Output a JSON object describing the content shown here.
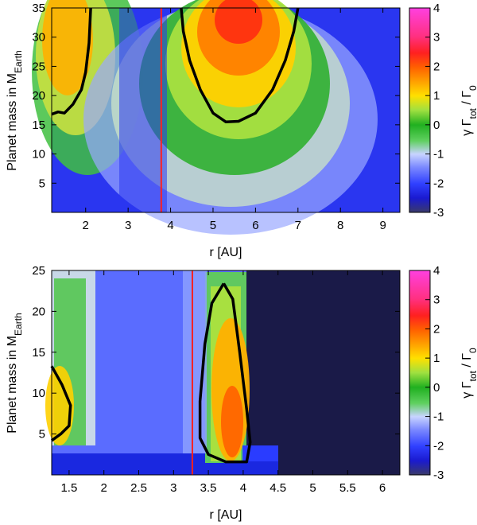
{
  "chart_data": [
    {
      "type": "heatmap",
      "title": "",
      "xlabel": "r [AU]",
      "ylabel_main": "Planet mass in M",
      "ylabel_sub": "Earth",
      "colorbar_label_main": "γ Γ",
      "colorbar_label_sub": "tot",
      "colorbar_label_tail": " / Γ",
      "colorbar_label_sub2": "0",
      "xlim": [
        1.2,
        9.4
      ],
      "ylim": [
        0,
        35
      ],
      "zlim": [
        -3,
        4
      ],
      "x_ticks": [
        "2",
        "3",
        "4",
        "5",
        "6",
        "7",
        "8",
        "9"
      ],
      "x_tick_values": [
        2,
        3,
        4,
        5,
        6,
        7,
        8,
        9
      ],
      "y_ticks": [
        "5",
        "10",
        "15",
        "20",
        "25",
        "30",
        "35"
      ],
      "y_tick_values": [
        5,
        10,
        15,
        20,
        25,
        30,
        35
      ],
      "colorbar_ticks": [
        "-3",
        "-2",
        "-1",
        "0",
        "1",
        "2",
        "3",
        "4"
      ],
      "colorbar_tick_values": [
        -3,
        -2,
        -1,
        0,
        1,
        2,
        3,
        4
      ],
      "vline_x": 3.78,
      "vline_color": "#ff2020",
      "zero_contours": [
        [
          [
            1.2,
            16.8
          ],
          [
            1.35,
            17.2
          ],
          [
            1.5,
            17.0
          ],
          [
            1.7,
            18.5
          ],
          [
            1.9,
            21.0
          ],
          [
            2.0,
            24.0
          ],
          [
            2.08,
            29.0
          ],
          [
            2.12,
            35.0
          ]
        ],
        [
          [
            4.25,
            35.0
          ],
          [
            4.3,
            31.0
          ],
          [
            4.45,
            26.0
          ],
          [
            4.7,
            21.0
          ],
          [
            5.0,
            17.0
          ],
          [
            5.3,
            15.5
          ],
          [
            5.6,
            15.6
          ],
          [
            6.0,
            17.0
          ],
          [
            6.4,
            21.0
          ],
          [
            6.7,
            26.0
          ],
          [
            6.9,
            31.0
          ],
          [
            7.0,
            35.0
          ]
        ]
      ]
    },
    {
      "type": "heatmap",
      "title": "",
      "xlabel": "r [AU]",
      "ylabel_main": "Planet mass in M",
      "ylabel_sub": "Earth",
      "colorbar_label_main": "γ Γ",
      "colorbar_label_sub": "tot",
      "colorbar_label_tail": " / Γ",
      "colorbar_label_sub2": "0",
      "xlim": [
        1.25,
        6.25
      ],
      "ylim": [
        0,
        25
      ],
      "zlim": [
        -3,
        4
      ],
      "x_ticks": [
        "1.5",
        "2",
        "2.5",
        "3",
        "3.5",
        "4",
        "4.5",
        "5",
        "5.5",
        "6"
      ],
      "x_tick_values": [
        1.5,
        2,
        2.5,
        3,
        3.5,
        4,
        4.5,
        5,
        5.5,
        6
      ],
      "y_ticks": [
        "5",
        "10",
        "15",
        "20",
        "25"
      ],
      "y_tick_values": [
        5,
        10,
        15,
        20,
        25
      ],
      "colorbar_ticks": [
        "-3",
        "-2",
        "-1",
        "0",
        "1",
        "2",
        "3",
        "4"
      ],
      "colorbar_tick_values": [
        -3,
        -2,
        -1,
        0,
        1,
        2,
        3,
        4
      ],
      "vline_x": 3.27,
      "vline_color": "#ff2020",
      "zero_contours": [
        [
          [
            1.25,
            13.3
          ],
          [
            1.4,
            11.0
          ],
          [
            1.52,
            8.5
          ],
          [
            1.5,
            6.0
          ],
          [
            1.38,
            5.0
          ],
          [
            1.25,
            4.2
          ]
        ],
        [
          [
            3.72,
            23.4
          ],
          [
            3.85,
            21.5
          ],
          [
            3.95,
            15.0
          ],
          [
            4.05,
            8.0
          ],
          [
            4.1,
            4.0
          ],
          [
            4.05,
            1.6
          ],
          [
            3.75,
            1.6
          ],
          [
            3.5,
            2.5
          ],
          [
            3.38,
            4.5
          ],
          [
            3.38,
            9.0
          ],
          [
            3.45,
            16.0
          ],
          [
            3.55,
            21.0
          ],
          [
            3.72,
            23.4
          ]
        ]
      ]
    }
  ]
}
